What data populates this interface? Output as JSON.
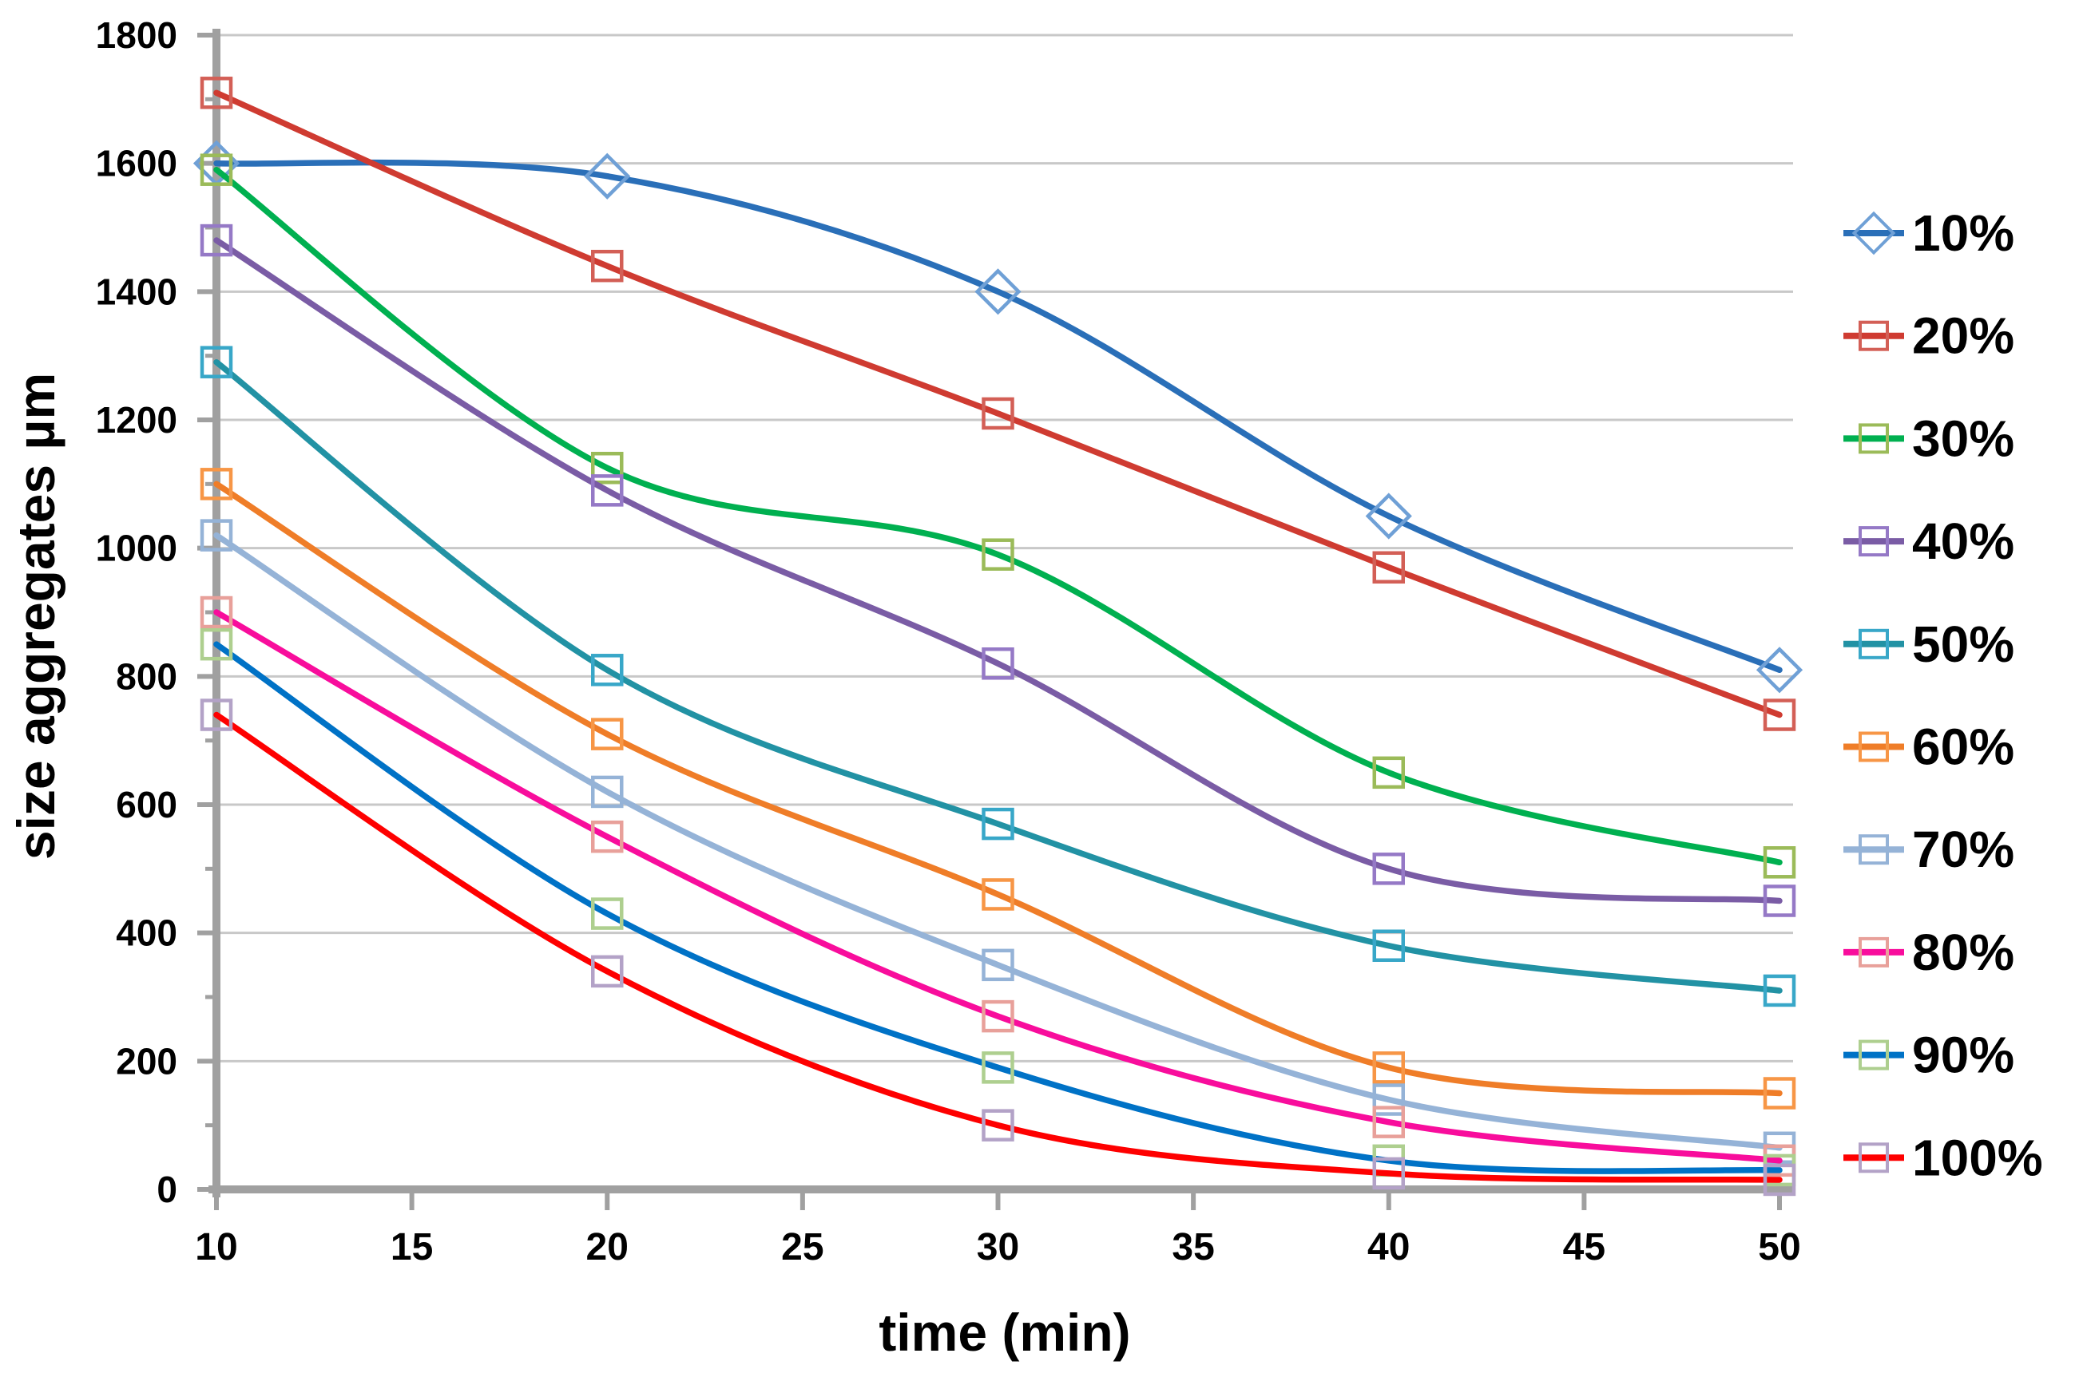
{
  "chart_data": {
    "type": "line",
    "title": "",
    "xlabel": "time (min)",
    "ylabel": "size aggregates µm",
    "x": [
      10,
      20,
      30,
      40,
      50
    ],
    "x_ticks": [
      10,
      15,
      20,
      25,
      30,
      35,
      40,
      45,
      50
    ],
    "y_ticks": [
      0,
      200,
      400,
      600,
      800,
      1000,
      1200,
      1400,
      1600,
      1800
    ],
    "y_minor_ticks": [
      100,
      300,
      500,
      700,
      900,
      1100,
      1300,
      1500,
      1700
    ],
    "xlim": [
      10,
      50
    ],
    "ylim": [
      0,
      1800
    ],
    "grid": "horizontal",
    "smooth_lines": true,
    "legend_position": "right",
    "series": [
      {
        "name": "10%",
        "marker": "diamond",
        "line_color": "#2A6FB8",
        "marker_color": "#6FA0D6",
        "values": [
          1600,
          1580,
          1400,
          1050,
          810
        ]
      },
      {
        "name": "20%",
        "marker": "square",
        "line_color": "#CF3B31",
        "marker_color": "#D35F56",
        "values": [
          1710,
          1440,
          1210,
          970,
          740
        ]
      },
      {
        "name": "30%",
        "marker": "square",
        "line_color": "#00B050",
        "marker_color": "#9BBB59",
        "values": [
          1590,
          1125,
          990,
          650,
          510
        ]
      },
      {
        "name": "40%",
        "marker": "square",
        "line_color": "#7A5CA5",
        "marker_color": "#9579C6",
        "values": [
          1480,
          1090,
          820,
          500,
          450
        ]
      },
      {
        "name": "50%",
        "marker": "square",
        "line_color": "#2292A4",
        "marker_color": "#38A7C8",
        "values": [
          1290,
          810,
          570,
          380,
          310
        ]
      },
      {
        "name": "60%",
        "marker": "square",
        "line_color": "#EF7D28",
        "marker_color": "#F79646",
        "values": [
          1100,
          710,
          460,
          190,
          150
        ]
      },
      {
        "name": "70%",
        "marker": "square",
        "line_color": "#95B3D7",
        "marker_color": "#95B3D7",
        "values": [
          1020,
          620,
          350,
          140,
          65
        ]
      },
      {
        "name": "80%",
        "marker": "square",
        "line_color": "#F80D9C",
        "marker_color": "#E8A09A",
        "values": [
          900,
          550,
          270,
          105,
          45
        ]
      },
      {
        "name": "90%",
        "marker": "square",
        "line_color": "#0072C6",
        "marker_color": "#AECF8F",
        "values": [
          850,
          430,
          190,
          45,
          30
        ]
      },
      {
        "name": "100%",
        "marker": "square",
        "line_color": "#FE0000",
        "marker_color": "#B3A2C7",
        "values": [
          740,
          340,
          100,
          25,
          15
        ]
      }
    ]
  },
  "colors": {
    "background": "#FFFFFF",
    "gridline": "#C8C8C8",
    "axis": "#A0A0A0",
    "text": "#000000"
  }
}
